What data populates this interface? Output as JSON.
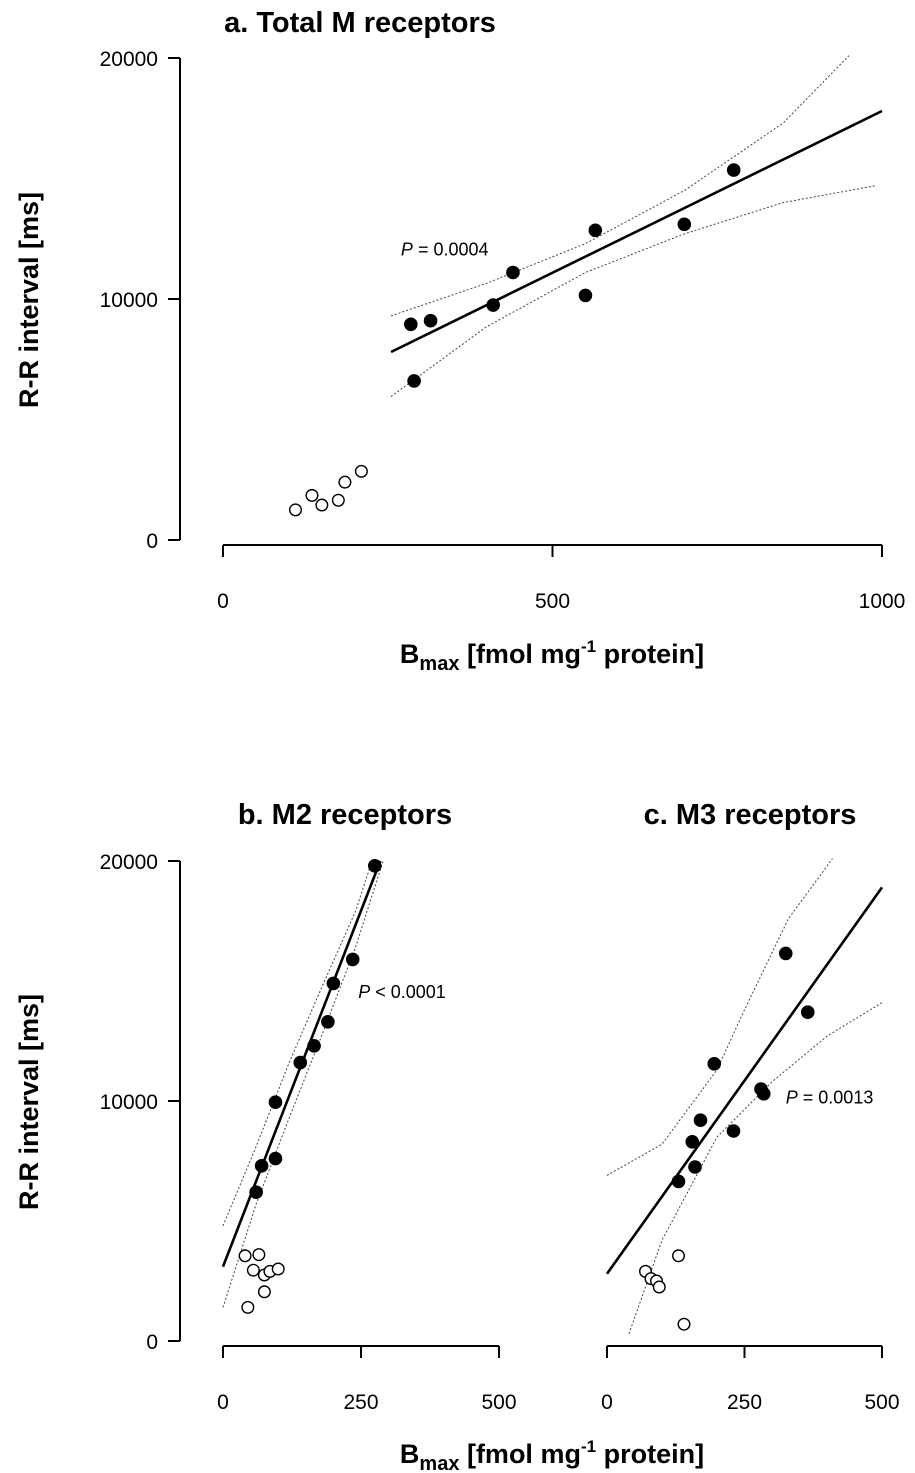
{
  "chart_data": [
    {
      "id": "a",
      "type": "scatter",
      "title": "a. Total M receptors",
      "xlabel_main": "B",
      "xlabel_sub": "max",
      "xlabel_mid": " [fmol mg",
      "xlabel_sup": "-1",
      "xlabel_end": " protein]",
      "ylabel": "R-R interval [ms]",
      "xlim": [
        0,
        1000
      ],
      "ylim": [
        0,
        20000
      ],
      "xticks": [
        0,
        500,
        1000
      ],
      "yticks": [
        0,
        10000,
        20000
      ],
      "xtick_labels": [
        "0",
        "500",
        "1000"
      ],
      "ytick_labels": [
        "0",
        "10000",
        "20000"
      ],
      "p_prefix": "P",
      "p_text": " = 0.0004",
      "p_at": [
        270,
        11800
      ],
      "filled_points": [
        [
          285,
          8950
        ],
        [
          290,
          6600
        ],
        [
          315,
          9100
        ],
        [
          410,
          9750
        ],
        [
          440,
          11100
        ],
        [
          550,
          10150
        ],
        [
          565,
          12850
        ],
        [
          700,
          13100
        ],
        [
          775,
          15350
        ]
      ],
      "open_points": [
        [
          110,
          1250
        ],
        [
          135,
          1850
        ],
        [
          150,
          1450
        ],
        [
          175,
          1650
        ],
        [
          185,
          2400
        ],
        [
          210,
          2850
        ]
      ],
      "fit_line": [
        [
          255,
          7800
        ],
        [
          1000,
          17800
        ]
      ],
      "ci_upper": [
        [
          255,
          9300
        ],
        [
          400,
          10650
        ],
        [
          550,
          12300
        ],
        [
          700,
          14500
        ],
        [
          850,
          17300
        ],
        [
          950,
          20100
        ]
      ],
      "ci_lower": [
        [
          255,
          5950
        ],
        [
          400,
          8850
        ],
        [
          550,
          11100
        ],
        [
          700,
          12700
        ],
        [
          850,
          14000
        ],
        [
          990,
          14700
        ]
      ]
    },
    {
      "id": "b",
      "type": "scatter",
      "title": "b. M2 receptors",
      "xlabel_main": "",
      "ylabel": "R-R interval [ms]",
      "xlim": [
        0,
        500
      ],
      "ylim": [
        0,
        20000
      ],
      "xticks": [
        0,
        250,
        500
      ],
      "yticks": [
        0,
        10000,
        20000
      ],
      "xtick_labels": [
        "0",
        "250",
        "500"
      ],
      "ytick_labels": [
        "0",
        "10000",
        "20000"
      ],
      "p_prefix": "P",
      "p_text": " < 0.0001",
      "p_at": [
        245,
        14300
      ],
      "filled_points": [
        [
          60,
          6200
        ],
        [
          70,
          7300
        ],
        [
          95,
          7600
        ],
        [
          95,
          9950
        ],
        [
          140,
          11600
        ],
        [
          165,
          12300
        ],
        [
          190,
          13300
        ],
        [
          200,
          14900
        ],
        [
          235,
          15900
        ],
        [
          275,
          19800
        ]
      ],
      "open_points": [
        [
          40,
          3550
        ],
        [
          55,
          2950
        ],
        [
          65,
          3600
        ],
        [
          75,
          2750
        ],
        [
          75,
          2050
        ],
        [
          85,
          2900
        ],
        [
          45,
          1400
        ],
        [
          100,
          3000
        ]
      ],
      "fit_line": [
        [
          0,
          3100
        ],
        [
          285,
          20000
        ]
      ],
      "ci_upper": [
        [
          0,
          4800
        ],
        [
          60,
          8100
        ],
        [
          120,
          11600
        ],
        [
          180,
          14800
        ],
        [
          240,
          17900
        ],
        [
          270,
          20000
        ]
      ],
      "ci_lower": [
        [
          0,
          1400
        ],
        [
          60,
          5700
        ],
        [
          120,
          9300
        ],
        [
          180,
          12800
        ],
        [
          240,
          16400
        ],
        [
          290,
          20000
        ]
      ]
    },
    {
      "id": "c",
      "type": "scatter",
      "title": "c. M3 receptors",
      "xlabel_main": "",
      "ylabel": "",
      "xlim": [
        0,
        500
      ],
      "ylim": [
        0,
        20000
      ],
      "xticks": [
        0,
        250,
        500
      ],
      "yticks": [],
      "xtick_labels": [
        "0",
        "250",
        "500"
      ],
      "ytick_labels": [],
      "p_prefix": "P",
      "p_text": " = 0.0013",
      "p_at": [
        325,
        9900
      ],
      "filled_points": [
        [
          130,
          6650
        ],
        [
          155,
          8300
        ],
        [
          160,
          7250
        ],
        [
          170,
          9200
        ],
        [
          195,
          11550
        ],
        [
          230,
          8750
        ],
        [
          280,
          10500
        ],
        [
          285,
          10300
        ],
        [
          325,
          16150
        ],
        [
          365,
          13700
        ]
      ],
      "open_points": [
        [
          70,
          2900
        ],
        [
          80,
          2600
        ],
        [
          90,
          2500
        ],
        [
          95,
          2250
        ],
        [
          130,
          3550
        ],
        [
          140,
          700
        ]
      ],
      "fit_line": [
        [
          0,
          2800
        ],
        [
          500,
          18900
        ]
      ],
      "ci_upper": [
        [
          0,
          6900
        ],
        [
          100,
          8200
        ],
        [
          200,
          11300
        ],
        [
          250,
          13800
        ],
        [
          330,
          17600
        ],
        [
          410,
          20100
        ]
      ],
      "ci_lower": [
        [
          40,
          300
        ],
        [
          100,
          4200
        ],
        [
          200,
          8500
        ],
        [
          300,
          10800
        ],
        [
          400,
          12700
        ],
        [
          500,
          14100
        ]
      ]
    }
  ],
  "xaxis_label": {
    "main": "B",
    "sub": "max",
    "mid": " [fmol mg",
    "sup": "-1",
    "end": " protein]"
  },
  "yaxis_label": "R-R interval [ms]"
}
